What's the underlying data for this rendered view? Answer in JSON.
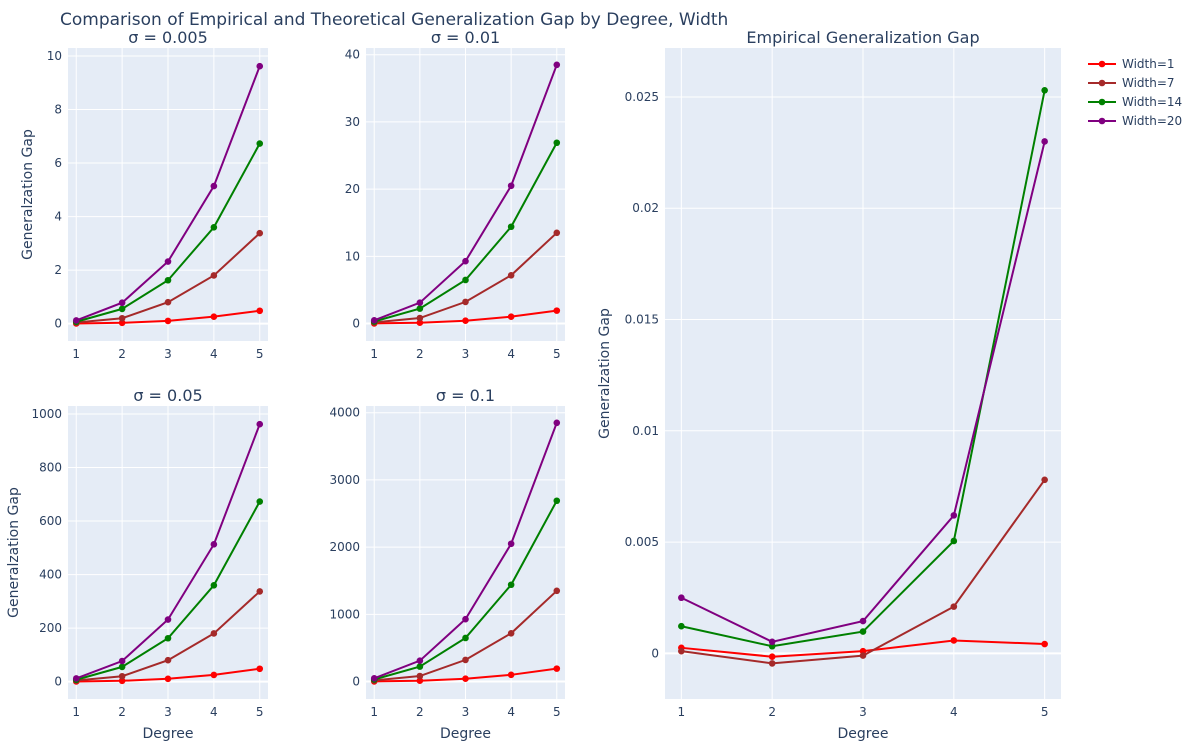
{
  "title": "Comparison of Empirical and Theoretical Generalization Gap by Degree, Width",
  "colors": {
    "Width=1": "#ff0000",
    "Width=7": "#a52a2a",
    "Width=14": "#008000",
    "Width=20": "#800080"
  },
  "legend": [
    "Width=1",
    "Width=7",
    "Width=14",
    "Width=20"
  ],
  "chart_data": [
    {
      "type": "line",
      "title": "σ = 0.005",
      "xlabel": "",
      "ylabel": "Generalzation Gap",
      "x": [
        1,
        2,
        3,
        4,
        5
      ],
      "ylim": [
        -0.65,
        10.3
      ],
      "yticks": [
        0,
        2,
        4,
        6,
        8,
        10
      ],
      "series": [
        {
          "name": "Width=1",
          "values": [
            0.005,
            0.03,
            0.1,
            0.26,
            0.48
          ]
        },
        {
          "name": "Width=7",
          "values": [
            0.04,
            0.2,
            0.8,
            1.8,
            3.38
          ]
        },
        {
          "name": "Width=14",
          "values": [
            0.07,
            0.55,
            1.62,
            3.6,
            6.73
          ]
        },
        {
          "name": "Width=20",
          "values": [
            0.12,
            0.78,
            2.32,
            5.14,
            9.62
          ]
        }
      ]
    },
    {
      "type": "line",
      "title": "σ = 0.01",
      "xlabel": "",
      "ylabel": "",
      "x": [
        1,
        2,
        3,
        4,
        5
      ],
      "ylim": [
        -2.6,
        41
      ],
      "yticks": [
        0,
        10,
        20,
        30,
        40
      ],
      "series": [
        {
          "name": "Width=1",
          "values": [
            0.02,
            0.12,
            0.42,
            1.02,
            1.92
          ]
        },
        {
          "name": "Width=7",
          "values": [
            0.16,
            0.82,
            3.22,
            7.18,
            13.5
          ]
        },
        {
          "name": "Width=14",
          "values": [
            0.3,
            2.22,
            6.48,
            14.4,
            26.9
          ]
        },
        {
          "name": "Width=20",
          "values": [
            0.48,
            3.1,
            9.28,
            20.5,
            38.5
          ]
        }
      ]
    },
    {
      "type": "line",
      "title": "σ = 0.05",
      "xlabel": "Degree",
      "ylabel": "Generalzation Gap",
      "x": [
        1,
        2,
        3,
        4,
        5
      ],
      "ylim": [
        -65,
        1030
      ],
      "yticks": [
        0,
        200,
        400,
        600,
        800,
        1000
      ],
      "series": [
        {
          "name": "Width=1",
          "values": [
            0.5,
            3,
            10.5,
            25,
            48
          ]
        },
        {
          "name": "Width=7",
          "values": [
            4,
            20,
            80,
            180,
            337
          ]
        },
        {
          "name": "Width=14",
          "values": [
            7,
            55,
            162,
            360,
            673
          ]
        },
        {
          "name": "Width=20",
          "values": [
            12,
            77,
            232,
            513,
            962
          ]
        }
      ]
    },
    {
      "type": "line",
      "title": "σ = 0.1",
      "xlabel": "Degree",
      "ylabel": "",
      "x": [
        1,
        2,
        3,
        4,
        5
      ],
      "ylim": [
        -260,
        4100
      ],
      "yticks": [
        0,
        1000,
        2000,
        3000,
        4000
      ],
      "series": [
        {
          "name": "Width=1",
          "values": [
            2,
            12,
            42,
            100,
            192
          ]
        },
        {
          "name": "Width=7",
          "values": [
            16,
            82,
            322,
            718,
            1350
          ]
        },
        {
          "name": "Width=14",
          "values": [
            30,
            222,
            648,
            1440,
            2690
          ]
        },
        {
          "name": "Width=20",
          "values": [
            48,
            310,
            928,
            2050,
            3850
          ]
        }
      ]
    },
    {
      "type": "line",
      "title": "Empirical Generalization Gap",
      "xlabel": "Degree",
      "ylabel": "Generalzation Gap",
      "x": [
        1,
        2,
        3,
        4,
        5
      ],
      "ylim": [
        -0.00205,
        0.0272
      ],
      "yticks": [
        0,
        0.005,
        0.01,
        0.015,
        0.02,
        0.025
      ],
      "ytick_labels": [
        "0",
        "0.005",
        "0.01",
        "0.015",
        "0.02",
        "0.025"
      ],
      "series": [
        {
          "name": "Width=1",
          "values": [
            0.00025,
            -0.00015,
            0.0001,
            0.00058,
            0.00042
          ]
        },
        {
          "name": "Width=7",
          "values": [
            0.0001,
            -0.00045,
            -0.0001,
            0.0021,
            0.0078
          ]
        },
        {
          "name": "Width=14",
          "values": [
            0.00122,
            0.00032,
            0.00098,
            0.00505,
            0.0253
          ]
        },
        {
          "name": "Width=20",
          "values": [
            0.0025,
            0.00052,
            0.00145,
            0.0062,
            0.023
          ]
        }
      ]
    }
  ]
}
